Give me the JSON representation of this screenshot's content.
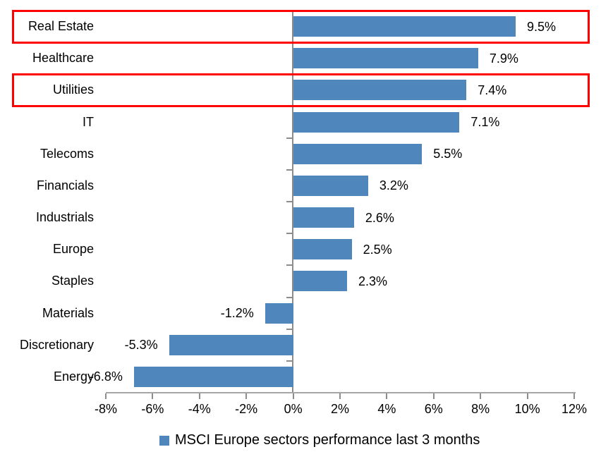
{
  "chart_data": {
    "type": "bar",
    "orientation": "horizontal",
    "title": "",
    "categories": [
      "Real Estate",
      "Healthcare",
      "Utilities",
      "IT",
      "Telecoms",
      "Financials",
      "Industrials",
      "Europe",
      "Staples",
      "Materials",
      "Discretionary",
      "Energy"
    ],
    "values": [
      9.5,
      7.9,
      7.4,
      7.1,
      5.5,
      3.2,
      2.6,
      2.5,
      2.3,
      -1.2,
      -5.3,
      -6.8
    ],
    "value_labels": [
      "9.5%",
      "7.9%",
      "7.4%",
      "7.1%",
      "5.5%",
      "3.2%",
      "2.6%",
      "2.5%",
      "2.3%",
      "-1.2%",
      "-5.3%",
      "-6.8%"
    ],
    "x_ticks": [
      -8,
      -6,
      -4,
      -2,
      0,
      2,
      4,
      6,
      8,
      10,
      12
    ],
    "x_tick_labels": [
      "-8%",
      "-6%",
      "-4%",
      "-2%",
      "0%",
      "2%",
      "4%",
      "6%",
      "8%",
      "10%",
      "12%"
    ],
    "xlim": [
      -8,
      12
    ],
    "grid": "off",
    "legend_position": "bottom-center",
    "series_name": "MSCI Europe sectors performance last 3 months",
    "highlighted_categories": [
      "Real Estate",
      "Utilities"
    ],
    "colors": {
      "bar": "#4f86bc",
      "highlight_border": "#ff0000",
      "value_axis_line": "#8c8c8c",
      "category_axis_line": "#a6a6a6",
      "tick": "#8c8c8c",
      "text": "#000000"
    }
  }
}
